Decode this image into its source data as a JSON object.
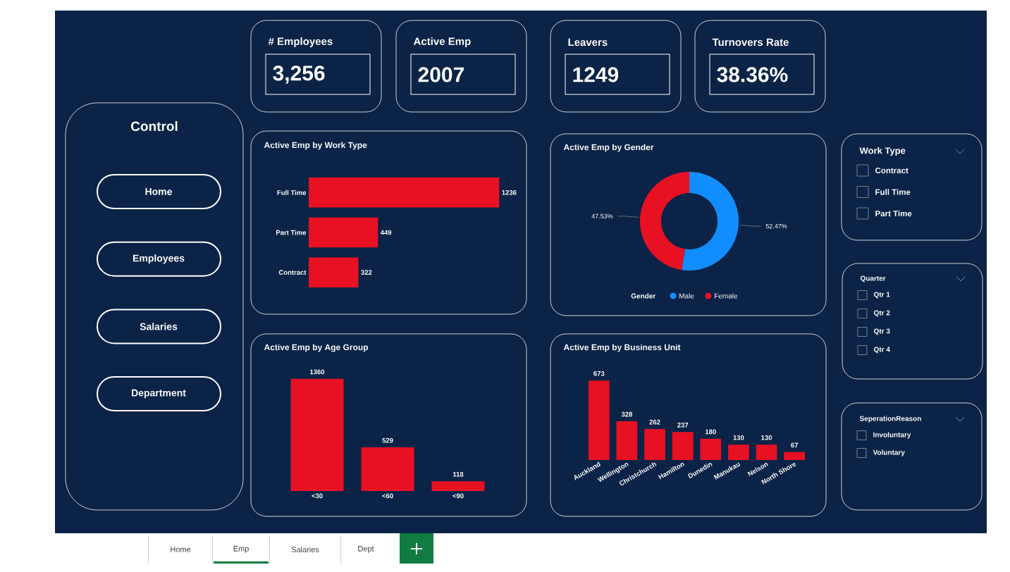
{
  "chart_data": [
    {
      "type": "other",
      "annotations": [
        "# Employees",
        "3,256",
        "Active Emp",
        "2007",
        "Leavers",
        "1249",
        "Turnovers Rate",
        "38.36%"
      ]
    },
    {
      "type": "other",
      "title": "Control",
      "annotations": [
        "Home",
        "Employees",
        "Salaries",
        "Department"
      ]
    },
    {
      "type": "bar",
      "orientation": "horizontal",
      "title": "Active Emp by Work Type",
      "categories": [
        "Full Time",
        "Part Time",
        "Contract"
      ],
      "values": [
        1236,
        449,
        322
      ],
      "color": "#e81123",
      "data_labels": true
    },
    {
      "type": "donut",
      "title": "Active Emp by Gender",
      "categories": [
        "Male",
        "Female"
      ],
      "values": [
        52.47,
        47.53
      ],
      "value_labels": [
        "52.47%",
        "47.53%"
      ],
      "colors": [
        "#118dff",
        "#e81123"
      ],
      "legend": "bottom",
      "legend_title": "Gender"
    },
    {
      "type": "bar",
      "title": "Active Emp by Age Group",
      "categories": [
        "<30",
        "<60",
        "<90"
      ],
      "values": [
        1360,
        529,
        118
      ],
      "color": "#e81123",
      "data_labels": true
    },
    {
      "type": "bar",
      "title": "Active Emp by Business Unit",
      "categories": [
        "Auckland",
        "Wellington",
        "Christchurch",
        "Hamilton",
        "Dunedin",
        "Manukau",
        "Nelson",
        "North Shore"
      ],
      "values": [
        673,
        328,
        262,
        237,
        180,
        130,
        130,
        67
      ],
      "color": "#e81123",
      "data_labels": true
    },
    {
      "type": "other",
      "title": "Work Type",
      "annotations": [
        "Contract",
        "Full Time",
        "Part Time"
      ]
    },
    {
      "type": "other",
      "title": "Quarter",
      "annotations": [
        "Qtr 1",
        "Qtr 2",
        "Qtr 3",
        "Qtr 4"
      ]
    },
    {
      "type": "other",
      "title": "SeperationReason",
      "annotations": [
        "Involuntary",
        "Voluntary"
      ]
    },
    {
      "type": "other",
      "annotations": [
        "Home",
        "Emp",
        "Salaries",
        "Dept"
      ]
    }
  ]
}
